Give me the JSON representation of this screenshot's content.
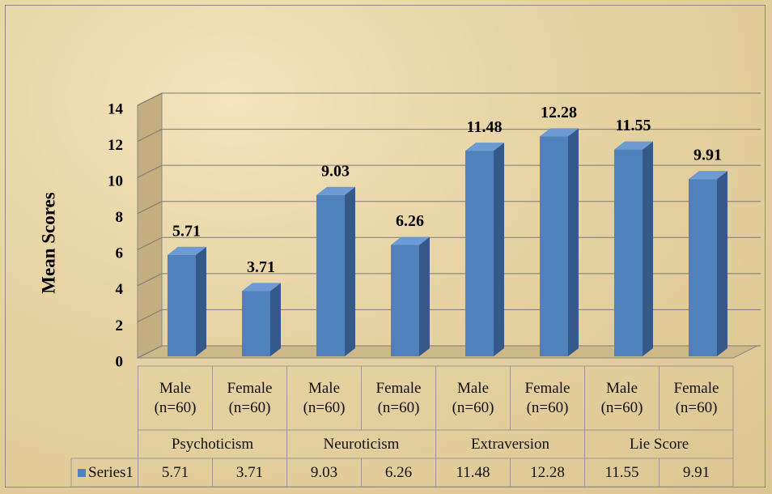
{
  "chart_data": {
    "type": "bar",
    "ylabel": "Mean Scores",
    "categories": [
      "Male (n=60)",
      "Female (n=60)",
      "Male (n=60)",
      "Female (n=60)",
      "Male (n=60)",
      "Female (n=60)",
      "Male (n=60)",
      "Female (n=60)"
    ],
    "groups": [
      "Psychoticism",
      "Neuroticism",
      "Extraversion",
      "Lie Score"
    ],
    "series": [
      {
        "name": "Series1",
        "color": "#4f81bd",
        "values": [
          5.71,
          3.71,
          9.03,
          6.26,
          11.48,
          12.28,
          11.55,
          9.91
        ]
      }
    ],
    "ylim": [
      0,
      14
    ],
    "yticks": [
      0,
      2,
      4,
      6,
      8,
      10,
      12,
      14
    ],
    "grid": true,
    "data_table": true
  }
}
